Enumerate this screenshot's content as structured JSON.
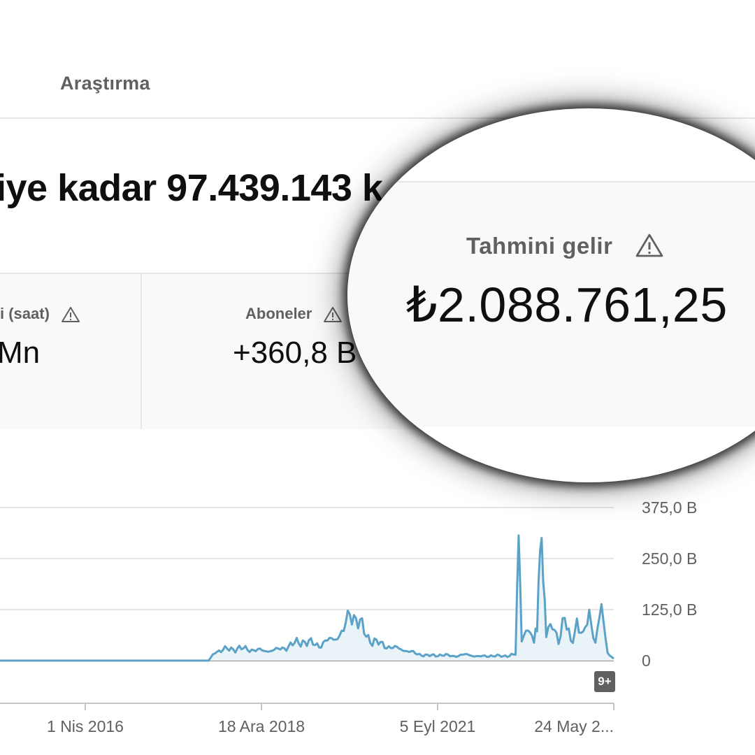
{
  "header": {
    "tabs": [
      {
        "label": "Araştırma"
      }
    ]
  },
  "headline": {
    "text": "iye kadar 97.439.143 k"
  },
  "metrics": [
    {
      "label": "i (saat)",
      "value": "Mn",
      "warning": true
    },
    {
      "label": "Aboneler",
      "value": "+360,8 B",
      "warning": true
    },
    {
      "label": "Tahmini gelir",
      "value": "₺2.088.761,25",
      "warning": true
    }
  ],
  "chart_data": {
    "type": "area",
    "y_ticks": [
      "375,0 B",
      "250,0 B",
      "125,0 B",
      "0"
    ],
    "y_tick_values": [
      375000,
      250000,
      125000,
      0
    ],
    "x_ticks": [
      "1 Nis 2016",
      "18 Ara 2018",
      "5 Eyl 2021",
      "24 May 2..."
    ],
    "ylim": [
      0,
      375000
    ],
    "series": [
      {
        "color": "#5ba2c8",
        "points": [
          [
            0.0,
            0
          ],
          [
            0.1,
            0
          ],
          [
            0.2,
            0
          ],
          [
            0.3,
            0
          ],
          [
            0.34,
            0
          ],
          [
            0.35,
            22000
          ],
          [
            0.37,
            28000
          ],
          [
            0.39,
            30000
          ],
          [
            0.41,
            27000
          ],
          [
            0.43,
            24000
          ],
          [
            0.45,
            26000
          ],
          [
            0.47,
            35000
          ],
          [
            0.49,
            48000
          ],
          [
            0.5,
            45000
          ],
          [
            0.52,
            38000
          ],
          [
            0.54,
            52000
          ],
          [
            0.56,
            70000
          ],
          [
            0.57,
            120000
          ],
          [
            0.58,
            105000
          ],
          [
            0.6,
            55000
          ],
          [
            0.62,
            40000
          ],
          [
            0.64,
            32000
          ],
          [
            0.66,
            26000
          ],
          [
            0.68,
            16000
          ],
          [
            0.7,
            12000
          ],
          [
            0.72,
            14000
          ],
          [
            0.74,
            11000
          ],
          [
            0.76,
            15000
          ],
          [
            0.78,
            10000
          ],
          [
            0.8,
            12000
          ],
          [
            0.82,
            11000
          ],
          [
            0.84,
            15000
          ],
          [
            0.845,
            310000
          ],
          [
            0.85,
            60000
          ],
          [
            0.86,
            80000
          ],
          [
            0.87,
            40000
          ],
          [
            0.875,
            90000
          ],
          [
            0.88,
            310000
          ],
          [
            0.885,
            210000
          ],
          [
            0.89,
            60000
          ],
          [
            0.9,
            85000
          ],
          [
            0.91,
            55000
          ],
          [
            0.92,
            100000
          ],
          [
            0.93,
            45000
          ],
          [
            0.94,
            95000
          ],
          [
            0.95,
            55000
          ],
          [
            0.96,
            120000
          ],
          [
            0.97,
            45000
          ],
          [
            0.98,
            125000
          ],
          [
            0.99,
            20000
          ],
          [
            1.0,
            5000
          ]
        ]
      }
    ],
    "badge": "9+",
    "grid": true
  }
}
